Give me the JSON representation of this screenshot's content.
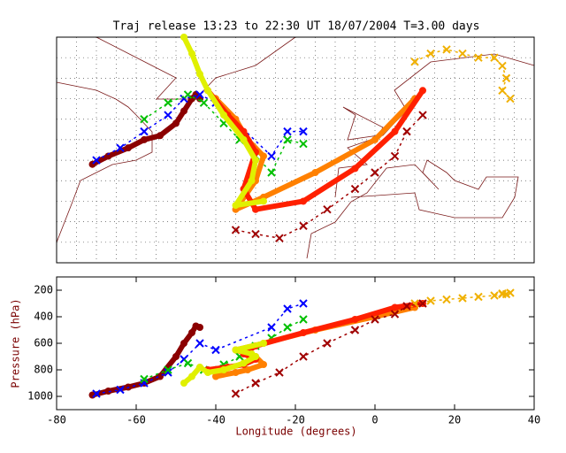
{
  "chart_data": {
    "type": "trajectory",
    "title": "Traj release 13:23 to 22:30 UT 18/07/2004    T=3.00 days",
    "map": {
      "lonlim": [
        -80,
        40
      ],
      "latlim": [
        20,
        75
      ],
      "grid_step": 5
    },
    "profile": {
      "xlabel": "Longitude  (degrees)",
      "ylabel": "Pressure  (hPa)",
      "xlim": [
        -80,
        40
      ],
      "ylim": [
        1100,
        100
      ],
      "xticks": [
        -80,
        -60,
        -40,
        -20,
        0,
        20,
        40
      ],
      "yticks": [
        200,
        400,
        600,
        800,
        1000
      ]
    },
    "series": [
      {
        "color": "#8b0000",
        "marker": "o",
        "lon": [
          -71,
          -67,
          -62,
          -58,
          -54,
          -50,
          -48,
          -46,
          -45,
          -44
        ],
        "lat": [
          44,
          46,
          48,
          50,
          51,
          54,
          57,
          60,
          61,
          60
        ],
        "pressure": [
          990,
          960,
          930,
          900,
          850,
          700,
          600,
          520,
          470,
          480
        ]
      },
      {
        "color": "#0000ff",
        "marker": "x",
        "lon": [
          -70,
          -64,
          -58,
          -52,
          -48,
          -44,
          -40,
          -26,
          -22,
          -18
        ],
        "lat": [
          45,
          48,
          52,
          56,
          60,
          61,
          59,
          46,
          52,
          52
        ],
        "pressure": [
          980,
          950,
          900,
          820,
          720,
          600,
          650,
          480,
          340,
          300
        ]
      },
      {
        "color": "#00c000",
        "marker": "x",
        "lon": [
          -58,
          -52,
          -47,
          -43,
          -38,
          -34,
          -30,
          -26,
          -22,
          -18
        ],
        "lat": [
          55,
          59,
          61,
          59,
          54,
          50,
          46,
          42,
          50,
          49
        ],
        "pressure": [
          870,
          800,
          750,
          800,
          760,
          700,
          620,
          560,
          480,
          420
        ]
      },
      {
        "color": "#ff8000",
        "marker": "o",
        "lon": [
          -40,
          -35,
          -32,
          -28,
          -30,
          -35,
          -28,
          -15,
          0,
          10
        ],
        "lat": [
          60,
          55,
          50,
          46,
          40,
          33,
          36,
          42,
          50,
          60
        ],
        "pressure": [
          850,
          820,
          800,
          760,
          700,
          650,
          600,
          500,
          400,
          330
        ]
      },
      {
        "color": "#ff2000",
        "marker": "o",
        "lon": [
          -42,
          -37,
          -33,
          -30,
          -33,
          -30,
          -18,
          -5,
          5,
          12
        ],
        "lat": [
          62,
          56,
          52,
          47,
          38,
          33,
          35,
          43,
          52,
          62
        ],
        "pressure": [
          800,
          780,
          760,
          720,
          680,
          620,
          520,
          420,
          330,
          300
        ]
      },
      {
        "color": "#e0f000",
        "marker": "o",
        "lon": [
          -48,
          -46,
          -44,
          -42,
          -38,
          -33,
          -30,
          -31,
          -35,
          -28
        ],
        "lat": [
          75,
          71,
          66,
          62,
          56,
          50,
          45,
          40,
          34,
          35
        ],
        "pressure": [
          900,
          850,
          780,
          820,
          800,
          750,
          700,
          680,
          650,
          600
        ]
      },
      {
        "color": "#f0b000",
        "marker": "x",
        "lon": [
          10,
          14,
          18,
          22,
          26,
          30,
          32,
          33,
          32,
          34
        ],
        "lat": [
          69,
          71,
          72,
          71,
          70,
          70,
          68,
          65,
          62,
          60
        ],
        "pressure": [
          300,
          280,
          270,
          260,
          250,
          240,
          230,
          230,
          225,
          220
        ]
      },
      {
        "color": "#a00000",
        "marker": "x",
        "lon": [
          -35,
          -30,
          -24,
          -18,
          -12,
          -5,
          0,
          5,
          8,
          12
        ],
        "lat": [
          28,
          27,
          26,
          29,
          33,
          38,
          42,
          46,
          52,
          56
        ],
        "pressure": [
          980,
          900,
          820,
          700,
          600,
          500,
          420,
          380,
          320,
          300
        ]
      }
    ]
  }
}
